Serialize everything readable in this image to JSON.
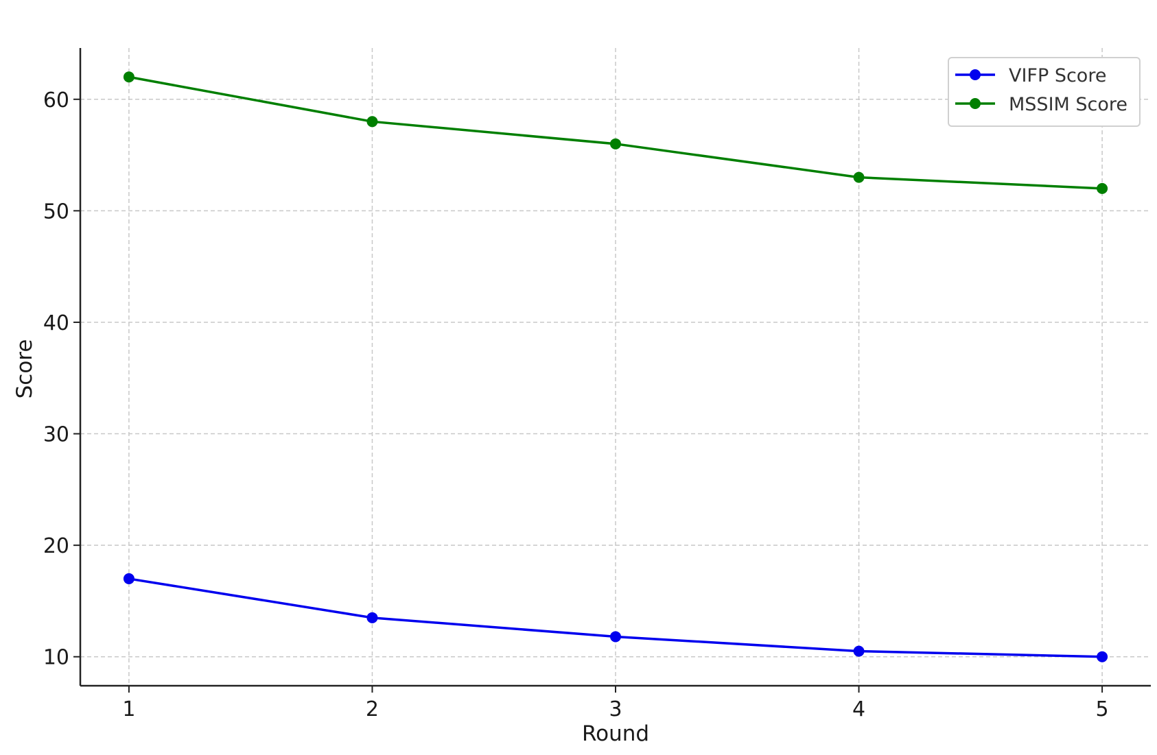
{
  "chart_data": {
    "type": "line",
    "title": "",
    "xlabel": "Round",
    "ylabel": "Score",
    "x": [
      1,
      2,
      3,
      4,
      5
    ],
    "xticks": [
      "1",
      "2",
      "3",
      "4",
      "5"
    ],
    "yticks": [
      "10",
      "20",
      "30",
      "40",
      "50",
      "60"
    ],
    "xlim": [
      0.8,
      5.2
    ],
    "ylim": [
      7.4,
      64.6
    ],
    "grid": true,
    "legend_position": "top-right",
    "series": [
      {
        "name": "VIFP Score",
        "color": "#0000ee",
        "values": [
          17.0,
          13.5,
          11.8,
          10.5,
          10.0
        ]
      },
      {
        "name": "MSSIM Score",
        "color": "#007f00",
        "values": [
          62.0,
          58.0,
          56.0,
          53.0,
          52.0
        ]
      }
    ]
  }
}
